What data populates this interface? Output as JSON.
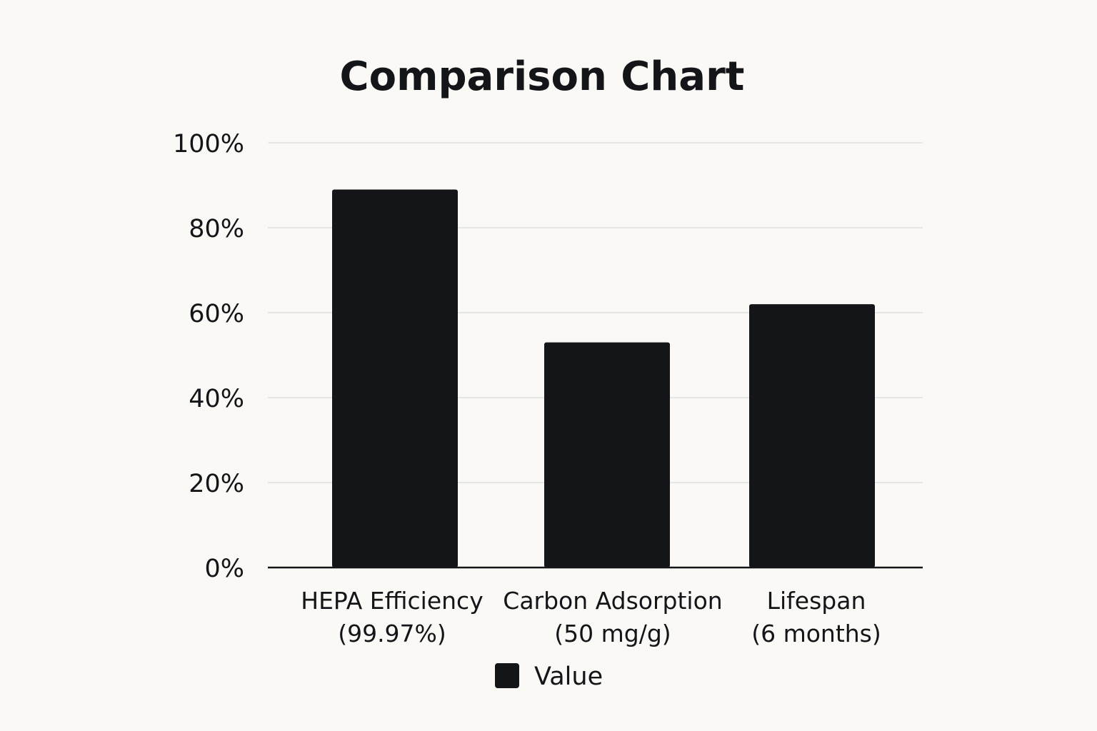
{
  "chart_data": {
    "type": "bar",
    "title": "Comparison Chart",
    "xlabel": "",
    "ylabel": "",
    "categories": [
      [
        "HEPA Efficiency",
        "(99.97%)"
      ],
      [
        "Carbon Adsorption",
        "(50 mg/g)"
      ],
      [
        "Lifespan",
        "(6 months)"
      ]
    ],
    "series": [
      {
        "name": "Value",
        "values": [
          89,
          53,
          62
        ],
        "color": "#141518"
      }
    ],
    "ylim": [
      0,
      100
    ],
    "yticks": [
      "0%",
      "20%",
      "40%",
      "60%",
      "80%",
      "100%"
    ],
    "ytick_values": [
      0,
      20,
      40,
      60,
      80,
      100
    ],
    "grid": true,
    "legend_position": "bottom-center"
  }
}
